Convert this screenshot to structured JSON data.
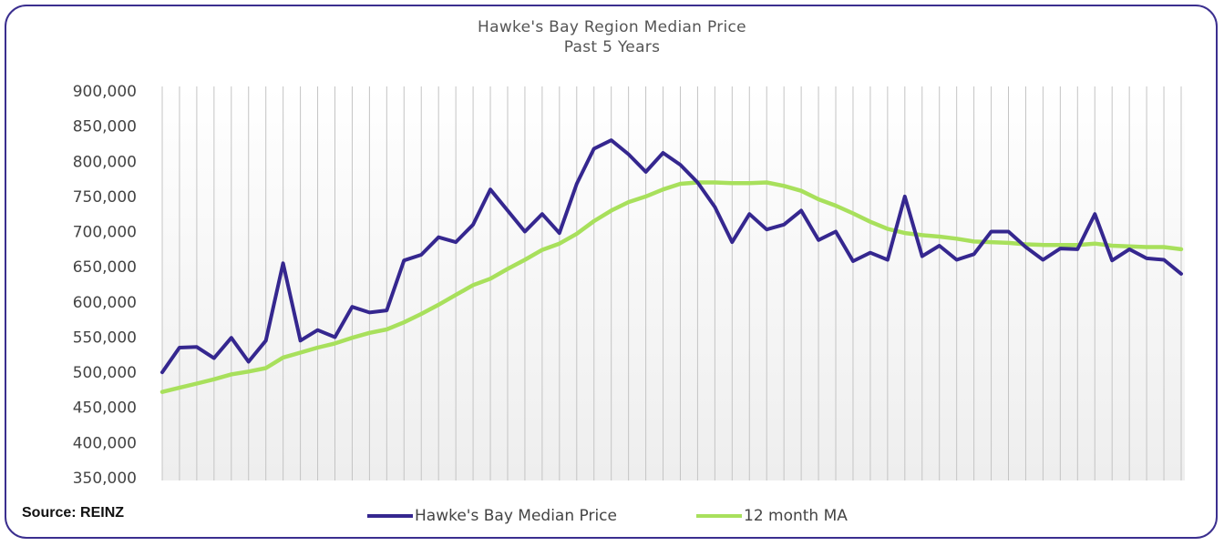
{
  "chart_data": {
    "type": "line",
    "title": "Hawke's Bay Region Median Price",
    "subtitle": "Past 5 Years",
    "ylim": [
      350000,
      900000
    ],
    "yticks": [
      "900,000",
      "850,000",
      "800,000",
      "750,000",
      "700,000",
      "650,000",
      "600,000",
      "550,000",
      "500,000",
      "450,000",
      "400,000",
      "350,000"
    ],
    "ytick_values": [
      900000,
      850000,
      800000,
      750000,
      700000,
      650000,
      600000,
      550000,
      500000,
      450000,
      400000,
      350000
    ],
    "grid": "vertical lines at each month",
    "legend_position": "bottom",
    "series": [
      {
        "name": "Hawke's Bay Median Price",
        "color": "#35278f",
        "values": [
          500000,
          535000,
          536000,
          520000,
          549000,
          515000,
          545000,
          655000,
          545000,
          560000,
          550000,
          593000,
          585000,
          588000,
          659000,
          667000,
          692000,
          685000,
          710000,
          760000,
          730000,
          700000,
          725000,
          698000,
          768000,
          818000,
          830000,
          810000,
          785000,
          812000,
          795000,
          770000,
          735000,
          685000,
          725000,
          703000,
          710000,
          730000,
          688000,
          700000,
          658000,
          670000,
          660000,
          750000,
          665000,
          680000,
          660000,
          668000,
          700000,
          700000,
          678000,
          660000,
          676000,
          675000,
          725000,
          659000,
          675000,
          662000,
          660000,
          640000
        ]
      },
      {
        "name": "12 month MA",
        "color": "#a8e05c",
        "values": [
          472000,
          478000,
          484000,
          490000,
          497000,
          501000,
          506000,
          521000,
          528000,
          535000,
          541000,
          549000,
          556000,
          561000,
          571000,
          583000,
          596000,
          610000,
          624000,
          633000,
          647000,
          660000,
          674000,
          683000,
          697000,
          715000,
          730000,
          742000,
          750000,
          760000,
          768000,
          770000,
          770000,
          769000,
          769000,
          770000,
          765000,
          758000,
          746000,
          737000,
          726000,
          714000,
          704000,
          698000,
          695000,
          693000,
          690000,
          686000,
          685000,
          684000,
          682000,
          681000,
          681000,
          681000,
          683000,
          680000,
          679000,
          678000,
          678000,
          675000
        ]
      }
    ]
  },
  "source_label": "Source: REINZ"
}
